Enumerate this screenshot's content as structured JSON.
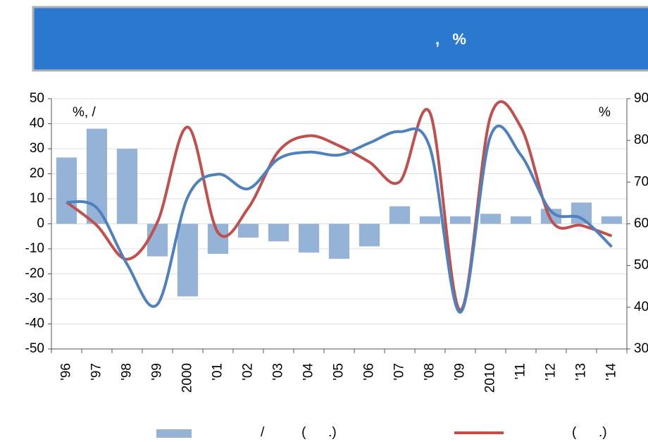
{
  "chart_data": {
    "type": "bar-line",
    "title": ",   %",
    "y_label": "%, /",
    "y2_label": "%",
    "categories": [
      "'96",
      "'97",
      "'98",
      "'99",
      "2000",
      "'01",
      "'02",
      "'03",
      "'04",
      "'05",
      "'06",
      "'07",
      "'08",
      "'09",
      "2010",
      "'11",
      "'12",
      "'13",
      "'14"
    ],
    "series": [
      {
        "name": "/          (      .)",
        "type": "bar",
        "color": "#95b3d7",
        "values": [
          26.5,
          38,
          30,
          -13,
          -29,
          -12,
          -5.5,
          -7,
          -11.5,
          -14,
          -9,
          7,
          3,
          3,
          4,
          3,
          6,
          8.5,
          3
        ]
      },
      {
        "name": "(      .)",
        "type": "line",
        "axis": "y2",
        "color": "#c0504d",
        "values": [
          65.2,
          59.6,
          51.5,
          60.4,
          83.2,
          57.9,
          63.8,
          77.4,
          81.1,
          78.7,
          74.8,
          70.1,
          86.6,
          39.3,
          85.8,
          83.2,
          60.9,
          59.6,
          57.1
        ]
      },
      {
        "type": "line",
        "axis": "y2",
        "color": "#4f81bd",
        "values": [
          65.2,
          63.8,
          50.3,
          40.7,
          66.4,
          71.9,
          68.4,
          75.6,
          77.2,
          76.5,
          79.4,
          82.1,
          78.2,
          38.8,
          81.1,
          76.5,
          63.0,
          61.3,
          54.5
        ]
      }
    ],
    "ylim": [
      -50,
      50
    ],
    "yticks": [
      -50,
      -40,
      -30,
      -20,
      -10,
      0,
      10,
      20,
      30,
      40,
      50
    ],
    "y2lim": [
      30,
      90
    ],
    "y2ticks": [
      30,
      40,
      50,
      60,
      70,
      80,
      90
    ],
    "grid": true
  }
}
